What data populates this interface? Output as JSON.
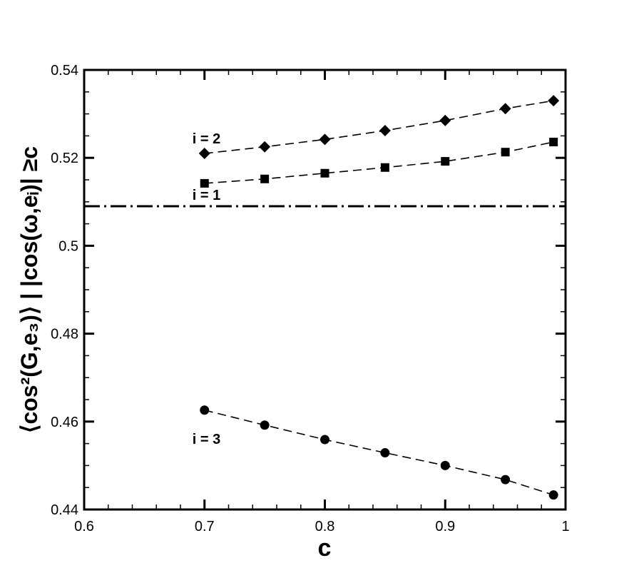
{
  "chart_data": {
    "type": "line",
    "xlabel": "c",
    "ylabel": "⟨cos²(G,e₃)⟩ | |cos(ω,eᵢ)| ≥c",
    "xlim": [
      0.6,
      1.0
    ],
    "ylim": [
      0.44,
      0.54
    ],
    "x_ticks": [
      0.6,
      0.7,
      0.8,
      0.9,
      1.0
    ],
    "x_tick_labels": [
      "0.6",
      "0.7",
      "0.8",
      "0.9",
      "1"
    ],
    "y_ticks": [
      0.44,
      0.46,
      0.48,
      0.5,
      0.52,
      0.54
    ],
    "y_tick_labels": [
      "0.44",
      "0.46",
      "0.48",
      "0.5",
      "0.52",
      "0.54"
    ],
    "grid": false,
    "reference_line": {
      "y": 0.509,
      "style": "dash-dot"
    },
    "series": [
      {
        "name": "i = 2",
        "marker": "diamond",
        "x": [
          0.7,
          0.75,
          0.8,
          0.85,
          0.9,
          0.95,
          0.99
        ],
        "values": [
          0.521,
          0.5225,
          0.5242,
          0.5262,
          0.5285,
          0.5312,
          0.533
        ]
      },
      {
        "name": "i = 1",
        "marker": "square",
        "x": [
          0.7,
          0.75,
          0.8,
          0.85,
          0.9,
          0.95,
          0.99
        ],
        "values": [
          0.5142,
          0.5152,
          0.5165,
          0.5178,
          0.5192,
          0.5213,
          0.5236
        ]
      },
      {
        "name": "i = 3",
        "marker": "circle",
        "x": [
          0.7,
          0.75,
          0.8,
          0.85,
          0.9,
          0.95,
          0.99
        ],
        "values": [
          0.4626,
          0.4592,
          0.4559,
          0.4529,
          0.45,
          0.4468,
          0.4433
        ]
      }
    ]
  }
}
